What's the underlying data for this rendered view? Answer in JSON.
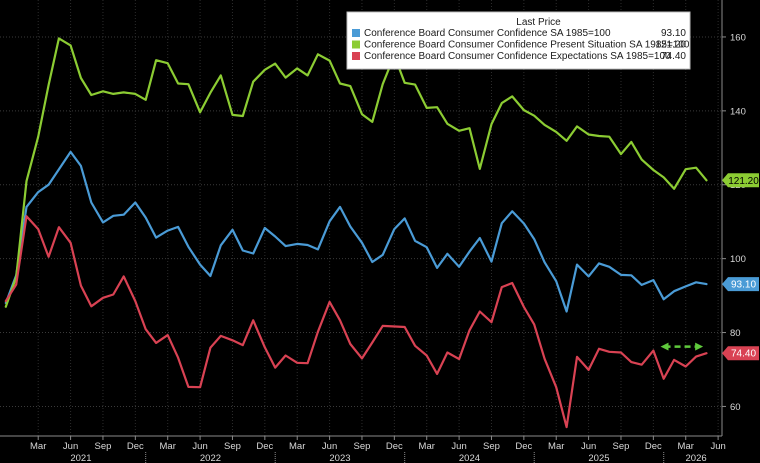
{
  "chart_data": {
    "type": "line",
    "legend": {
      "header": "Last Price",
      "placement": "top-right"
    },
    "series": [
      {
        "name": "Conference Board Consumer Confidence SA 1985=100",
        "last_price": "93.10",
        "color": "#4a9bd6",
        "label_text_color": "#ffffff",
        "values": [
          [
            2020.92,
            88.0
          ],
          [
            2021.0,
            95.5
          ],
          [
            2021.08,
            114.0
          ],
          [
            2021.17,
            118.0
          ],
          [
            2021.25,
            120.0
          ],
          [
            2021.42,
            128.9
          ],
          [
            2021.5,
            125.1
          ],
          [
            2021.58,
            115.2
          ],
          [
            2021.67,
            109.8
          ],
          [
            2021.75,
            111.6
          ],
          [
            2021.83,
            111.9
          ],
          [
            2021.92,
            115.2
          ],
          [
            2022.0,
            111.1
          ],
          [
            2022.08,
            105.7
          ],
          [
            2022.17,
            107.6
          ],
          [
            2022.25,
            108.6
          ],
          [
            2022.33,
            103.2
          ],
          [
            2022.42,
            98.4
          ],
          [
            2022.5,
            95.3
          ],
          [
            2022.58,
            103.6
          ],
          [
            2022.67,
            107.8
          ],
          [
            2022.75,
            102.2
          ],
          [
            2022.83,
            101.4
          ],
          [
            2022.92,
            108.3
          ],
          [
            2023.0,
            106.0
          ],
          [
            2023.08,
            103.4
          ],
          [
            2023.17,
            104.0
          ],
          [
            2023.25,
            103.7
          ],
          [
            2023.33,
            102.5
          ],
          [
            2023.42,
            110.1
          ],
          [
            2023.5,
            114.0
          ],
          [
            2023.58,
            108.7
          ],
          [
            2023.67,
            104.3
          ],
          [
            2023.75,
            99.1
          ],
          [
            2023.83,
            101.0
          ],
          [
            2023.92,
            108.0
          ],
          [
            2024.0,
            110.9
          ],
          [
            2024.08,
            104.8
          ],
          [
            2024.17,
            103.1
          ],
          [
            2024.25,
            97.5
          ],
          [
            2024.33,
            101.3
          ],
          [
            2024.42,
            97.8
          ],
          [
            2024.5,
            101.9
          ],
          [
            2024.58,
            105.6
          ],
          [
            2024.67,
            99.2
          ],
          [
            2024.75,
            109.6
          ],
          [
            2024.83,
            112.8
          ],
          [
            2024.92,
            109.5
          ],
          [
            2025.0,
            105.3
          ],
          [
            2025.08,
            99.0
          ],
          [
            2025.17,
            93.9
          ],
          [
            2025.25,
            85.7
          ],
          [
            2025.33,
            98.4
          ],
          [
            2025.42,
            95.2
          ],
          [
            2025.5,
            98.7
          ],
          [
            2025.58,
            97.8
          ],
          [
            2025.67,
            95.6
          ],
          [
            2025.75,
            95.5
          ],
          [
            2025.83,
            92.9
          ],
          [
            2025.92,
            94.2
          ],
          [
            2026.0,
            89.0
          ],
          [
            2026.08,
            91.2
          ],
          [
            2026.17,
            92.5
          ],
          [
            2026.25,
            93.6
          ],
          [
            2026.33,
            93.1
          ]
        ]
      },
      {
        "name": "Conference Board Consumer Confidence Present Situation SA 1985=100",
        "last_price": "121.20",
        "color": "#8ccc33",
        "label_text_color": "#000000",
        "values": [
          [
            2020.92,
            87.0
          ],
          [
            2021.0,
            95.0
          ],
          [
            2021.08,
            121.0
          ],
          [
            2021.17,
            133.0
          ],
          [
            2021.25,
            147.0
          ],
          [
            2021.33,
            159.6
          ],
          [
            2021.42,
            157.7
          ],
          [
            2021.5,
            148.9
          ],
          [
            2021.58,
            144.3
          ],
          [
            2021.67,
            145.3
          ],
          [
            2021.75,
            144.6
          ],
          [
            2021.83,
            145.0
          ],
          [
            2021.92,
            144.6
          ],
          [
            2022.0,
            143.0
          ],
          [
            2022.08,
            153.7
          ],
          [
            2022.17,
            152.9
          ],
          [
            2022.25,
            147.4
          ],
          [
            2022.33,
            147.2
          ],
          [
            2022.42,
            139.6
          ],
          [
            2022.5,
            144.9
          ],
          [
            2022.58,
            149.6
          ],
          [
            2022.67,
            138.9
          ],
          [
            2022.75,
            138.6
          ],
          [
            2022.83,
            147.9
          ],
          [
            2022.92,
            151.1
          ],
          [
            2023.0,
            152.8
          ],
          [
            2023.08,
            149.0
          ],
          [
            2023.17,
            151.5
          ],
          [
            2023.25,
            149.6
          ],
          [
            2023.33,
            155.3
          ],
          [
            2023.42,
            153.6
          ],
          [
            2023.5,
            147.4
          ],
          [
            2023.58,
            146.7
          ],
          [
            2023.67,
            139.1
          ],
          [
            2023.75,
            137.0
          ],
          [
            2023.83,
            147.2
          ],
          [
            2023.92,
            155.0
          ],
          [
            2024.0,
            147.6
          ],
          [
            2024.08,
            147.1
          ],
          [
            2024.17,
            140.8
          ],
          [
            2024.25,
            141.0
          ],
          [
            2024.33,
            136.5
          ],
          [
            2024.42,
            134.6
          ],
          [
            2024.5,
            135.3
          ],
          [
            2024.58,
            124.3
          ],
          [
            2024.67,
            136.4
          ],
          [
            2024.75,
            142.1
          ],
          [
            2024.83,
            143.9
          ],
          [
            2024.92,
            140.2
          ],
          [
            2025.0,
            138.7
          ],
          [
            2025.08,
            136.2
          ],
          [
            2025.17,
            134.3
          ],
          [
            2025.25,
            131.9
          ],
          [
            2025.33,
            135.8
          ],
          [
            2025.42,
            133.6
          ],
          [
            2025.5,
            133.2
          ],
          [
            2025.58,
            133.0
          ],
          [
            2025.67,
            128.3
          ],
          [
            2025.75,
            131.6
          ],
          [
            2025.83,
            126.8
          ],
          [
            2025.92,
            124.0
          ],
          [
            2026.0,
            122.0
          ],
          [
            2026.08,
            118.9
          ],
          [
            2026.17,
            124.2
          ],
          [
            2026.25,
            124.6
          ],
          [
            2026.33,
            121.2
          ]
        ]
      },
      {
        "name": "Conference Board Consumer Confidence Expectations SA 1985=100",
        "last_price": "74.40",
        "color": "#d94253",
        "label_text_color": "#ffffff",
        "values": [
          [
            2020.92,
            88.5
          ],
          [
            2021.0,
            93.0
          ],
          [
            2021.08,
            111.5
          ],
          [
            2021.17,
            108.0
          ],
          [
            2021.25,
            100.5
          ],
          [
            2021.33,
            108.5
          ],
          [
            2021.42,
            104.3
          ],
          [
            2021.5,
            92.7
          ],
          [
            2021.58,
            87.1
          ],
          [
            2021.67,
            89.4
          ],
          [
            2021.75,
            90.3
          ],
          [
            2021.83,
            95.2
          ],
          [
            2021.92,
            88.5
          ],
          [
            2022.0,
            80.9
          ],
          [
            2022.08,
            77.2
          ],
          [
            2022.17,
            79.3
          ],
          [
            2022.25,
            73.2
          ],
          [
            2022.33,
            65.3
          ],
          [
            2022.42,
            65.2
          ],
          [
            2022.5,
            75.9
          ],
          [
            2022.58,
            79.1
          ],
          [
            2022.67,
            77.9
          ],
          [
            2022.75,
            76.6
          ],
          [
            2022.83,
            83.3
          ],
          [
            2022.92,
            76.0
          ],
          [
            2023.0,
            70.5
          ],
          [
            2023.08,
            73.8
          ],
          [
            2023.17,
            71.8
          ],
          [
            2023.25,
            71.7
          ],
          [
            2023.33,
            80.2
          ],
          [
            2023.42,
            88.3
          ],
          [
            2023.5,
            83.3
          ],
          [
            2023.58,
            76.9
          ],
          [
            2023.67,
            73.0
          ],
          [
            2023.75,
            77.3
          ],
          [
            2023.83,
            81.8
          ],
          [
            2024.0,
            81.5
          ],
          [
            2024.08,
            76.4
          ],
          [
            2024.17,
            73.8
          ],
          [
            2024.25,
            68.8
          ],
          [
            2024.33,
            74.6
          ],
          [
            2024.42,
            72.8
          ],
          [
            2024.5,
            80.6
          ],
          [
            2024.58,
            85.7
          ],
          [
            2024.67,
            82.8
          ],
          [
            2024.75,
            92.3
          ],
          [
            2024.83,
            93.4
          ],
          [
            2024.92,
            86.9
          ],
          [
            2025.0,
            82.2
          ],
          [
            2025.08,
            72.9
          ],
          [
            2025.17,
            65.2
          ],
          [
            2025.25,
            54.4
          ],
          [
            2025.33,
            73.4
          ],
          [
            2025.42,
            69.9
          ],
          [
            2025.5,
            75.6
          ],
          [
            2025.58,
            74.8
          ],
          [
            2025.67,
            74.6
          ],
          [
            2025.75,
            72.0
          ],
          [
            2025.83,
            71.3
          ],
          [
            2025.92,
            75.1
          ],
          [
            2026.0,
            67.5
          ],
          [
            2026.08,
            72.6
          ],
          [
            2026.17,
            70.8
          ],
          [
            2026.25,
            73.5
          ],
          [
            2026.33,
            74.4
          ]
        ]
      }
    ],
    "x_axis": {
      "range": [
        2020.875,
        2026.45
      ],
      "ticks": [
        {
          "x": 2021.17,
          "label": "Mar"
        },
        {
          "x": 2021.42,
          "label": "Jun"
        },
        {
          "x": 2021.67,
          "label": "Sep"
        },
        {
          "x": 2021.92,
          "label": "Dec"
        },
        {
          "x": 2022.17,
          "label": "Mar"
        },
        {
          "x": 2022.42,
          "label": "Jun"
        },
        {
          "x": 2022.67,
          "label": "Sep"
        },
        {
          "x": 2022.92,
          "label": "Dec"
        },
        {
          "x": 2023.17,
          "label": "Mar"
        },
        {
          "x": 2023.42,
          "label": "Jun"
        },
        {
          "x": 2023.67,
          "label": "Sep"
        },
        {
          "x": 2023.92,
          "label": "Dec"
        },
        {
          "x": 2024.17,
          "label": "Mar"
        },
        {
          "x": 2024.42,
          "label": "Jun"
        },
        {
          "x": 2024.67,
          "label": "Sep"
        },
        {
          "x": 2024.92,
          "label": "Dec"
        },
        {
          "x": 2025.17,
          "label": "Mar"
        },
        {
          "x": 2025.42,
          "label": "Jun"
        },
        {
          "x": 2025.67,
          "label": "Sep"
        },
        {
          "x": 2025.92,
          "label": "Dec"
        },
        {
          "x": 2026.17,
          "label": "Mar"
        },
        {
          "x": 2026.42,
          "label": "Jun"
        }
      ],
      "years": [
        {
          "x": 2021.5,
          "label": "2021"
        },
        {
          "x": 2022.5,
          "label": "2022"
        },
        {
          "x": 2023.5,
          "label": "2023"
        },
        {
          "x": 2024.5,
          "label": "2024"
        },
        {
          "x": 2025.5,
          "label": "2025"
        },
        {
          "x": 2026.25,
          "label": "2026"
        }
      ]
    },
    "y_axis": {
      "range": [
        52,
        170
      ],
      "ticks": [
        60,
        80,
        100,
        120,
        140,
        160
      ],
      "gridlines": true,
      "position": "right"
    },
    "annotation": {
      "type": "dashed-double-arrow",
      "color": "#5fc93c",
      "from": [
        2025.96,
        76.2
      ],
      "to": [
        2026.32,
        76.2
      ]
    }
  }
}
